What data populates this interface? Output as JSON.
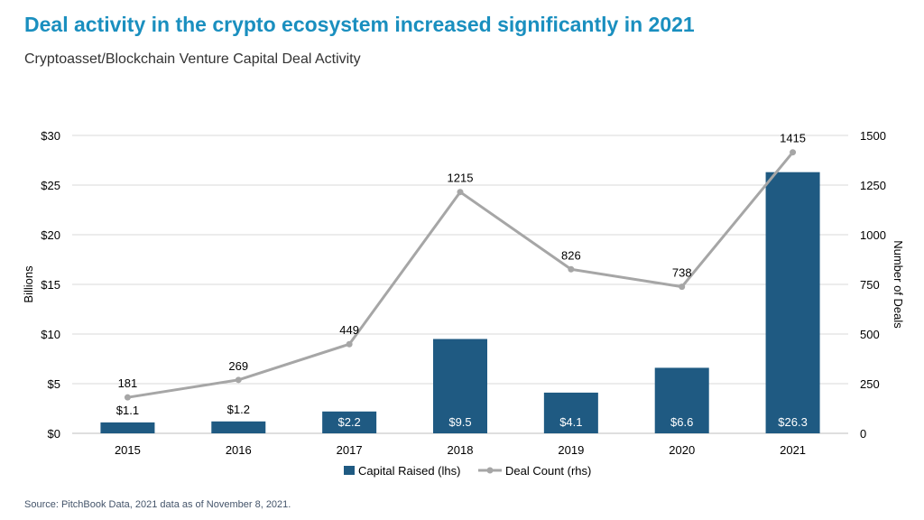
{
  "header": {
    "title": "Deal activity in the crypto ecosystem increased significantly in 2021",
    "subtitle": "Cryptoasset/Blockchain Venture Capital Deal Activity"
  },
  "footer": {
    "source": "Source: PitchBook Data, 2021 data as of November 8, 2021."
  },
  "colors": {
    "bar": "#1f5a82",
    "line": "#a6a6a6",
    "title": "#1a8fbf",
    "grid": "#d9d9d9"
  },
  "chart_data": {
    "type": "bar",
    "title": "Cryptoasset/Blockchain Venture Capital Deal Activity",
    "categories": [
      "2015",
      "2016",
      "2017",
      "2018",
      "2019",
      "2020",
      "2021"
    ],
    "series": [
      {
        "name": "Capital Raised (lhs)",
        "type": "bar",
        "axis": "left",
        "values": [
          1.1,
          1.2,
          2.2,
          9.5,
          4.1,
          6.6,
          26.3
        ],
        "labels": [
          "$1.1",
          "$1.2",
          "$2.2",
          "$9.5",
          "$4.1",
          "$6.6",
          "$26.3"
        ]
      },
      {
        "name": "Deal Count (rhs)",
        "type": "line",
        "axis": "right",
        "values": [
          181,
          269,
          449,
          1215,
          826,
          738,
          1415
        ],
        "labels": [
          "181",
          "269",
          "449",
          "1215",
          "826",
          "738",
          "1415"
        ]
      }
    ],
    "ylabel_left": "Billions",
    "ylabel_right": "Number of Deals",
    "ylim_left": [
      0,
      30
    ],
    "ylim_right": [
      0,
      1500
    ],
    "yticks_left": [
      "$0",
      "$5",
      "$10",
      "$15",
      "$20",
      "$25",
      "$30"
    ],
    "yticks_right": [
      "0",
      "250",
      "500",
      "750",
      "1000",
      "1250",
      "1500"
    ],
    "grid": true,
    "legend": "bottom-center"
  }
}
